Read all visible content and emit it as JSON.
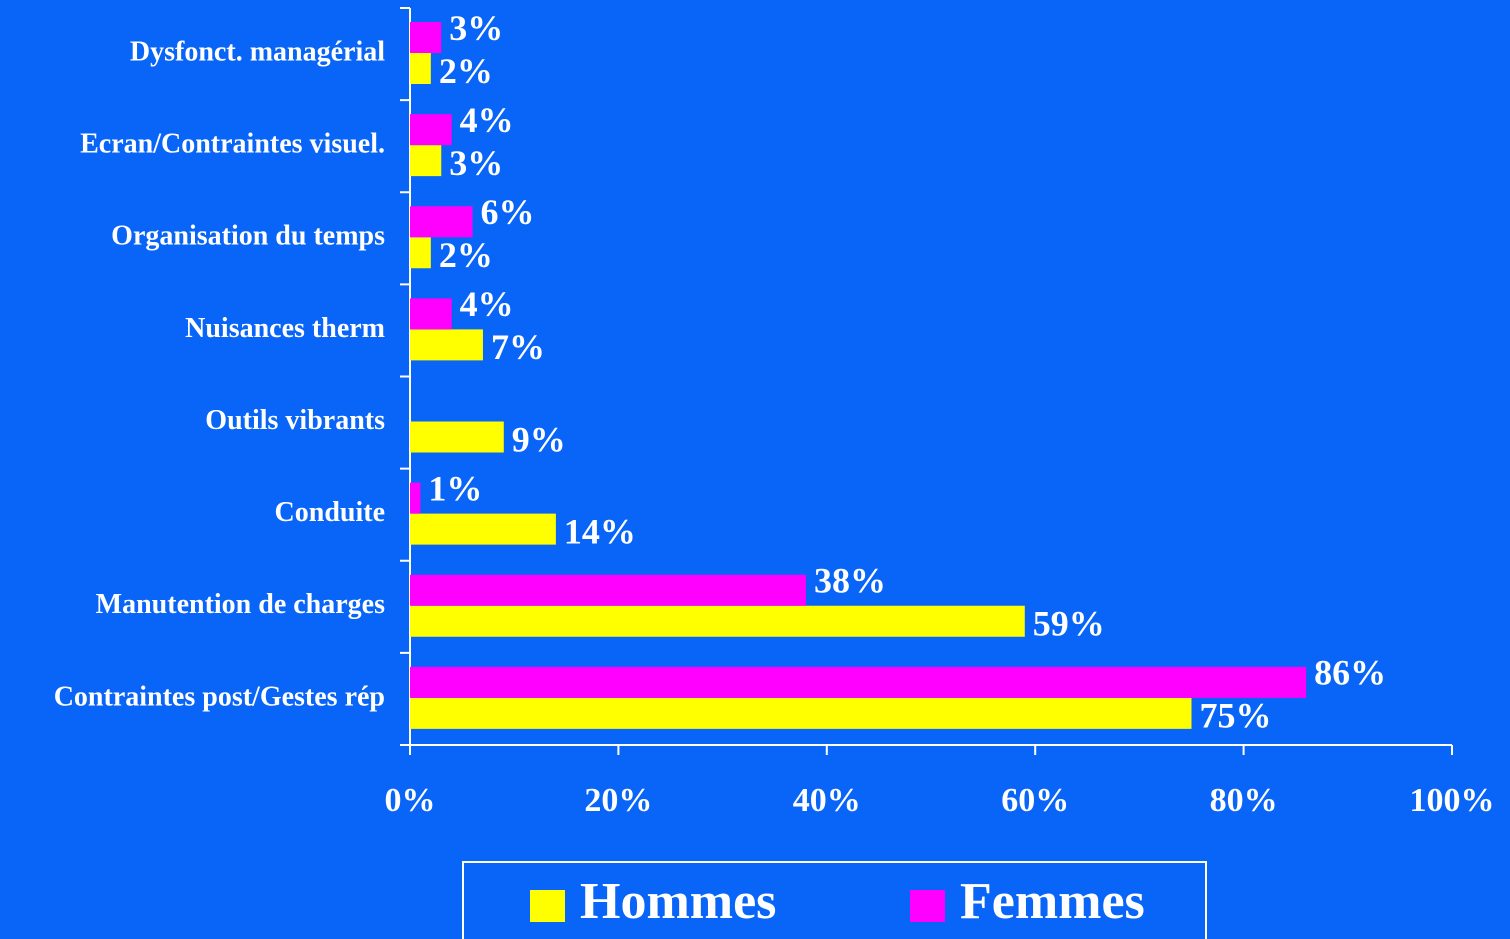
{
  "chart_data": {
    "type": "bar",
    "orientation": "horizontal",
    "categories": [
      "Dysfonct. managérial",
      "Ecran/Contraintes visuel.",
      "Organisation du temps",
      "Nuisances therm",
      "Outils vibrants",
      "Conduite",
      "Manutention de charges",
      "Contraintes post/Gestes rép"
    ],
    "series": [
      {
        "name": "Hommes",
        "color": "#ffff00",
        "values": [
          2,
          3,
          2,
          7,
          9,
          14,
          59,
          75
        ],
        "value_labels": [
          "2%",
          "3%",
          "2%",
          "7%",
          "9%",
          "14%",
          "59%",
          "75%"
        ]
      },
      {
        "name": "Femmes",
        "color": "#ff00ff",
        "values": [
          3,
          4,
          6,
          4,
          null,
          1,
          38,
          86
        ],
        "value_labels": [
          "3%",
          "4%",
          "6%",
          "4%",
          null,
          "1%",
          "38%",
          "86%"
        ]
      }
    ],
    "xlim": [
      0,
      100
    ],
    "xticks": [
      {
        "value": 0,
        "label": "0%"
      },
      {
        "value": 20,
        "label": "20%"
      },
      {
        "value": 40,
        "label": "40%"
      },
      {
        "value": 60,
        "label": "60%"
      },
      {
        "value": 80,
        "label": "80%"
      },
      {
        "value": 100,
        "label": "100%"
      }
    ],
    "legend": "bottom"
  }
}
